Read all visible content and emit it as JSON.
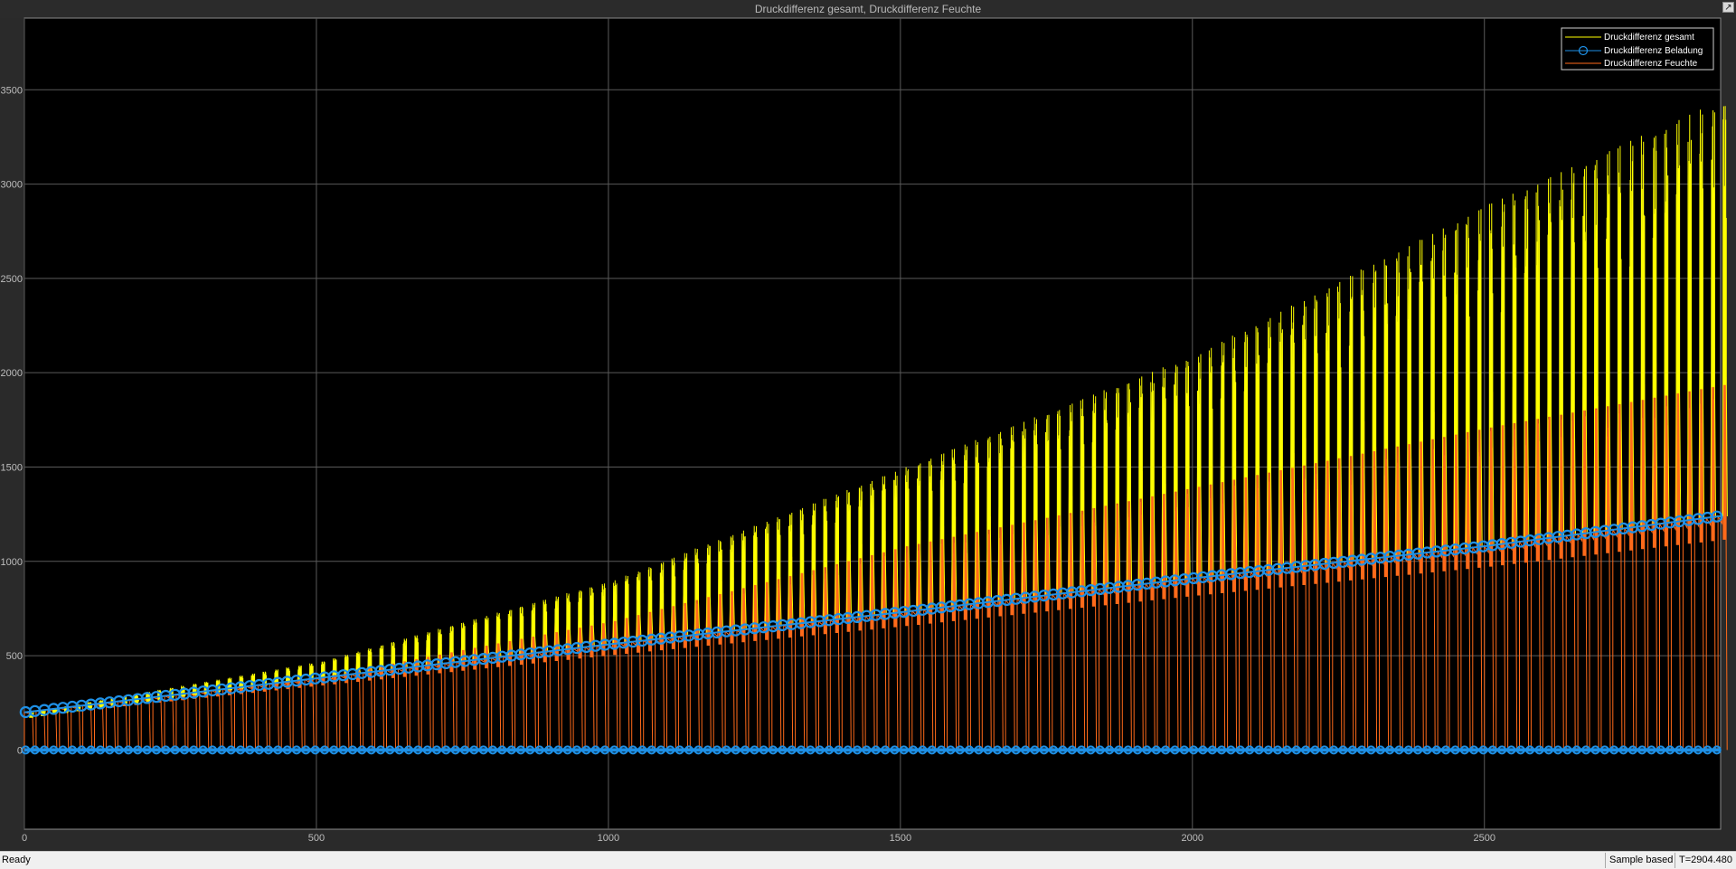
{
  "window": {
    "title": "Druckdifferenz gesamt, Druckdifferenz Feuchte",
    "undock_icon": "undock-arrow-icon"
  },
  "status": {
    "ready": "Ready",
    "mode": "Sample based",
    "time": "T=2904.480"
  },
  "colors": {
    "background": "#000000",
    "grid": "#5a5a5a",
    "gesamt": "#ffff00",
    "beladung": "#1e90e6",
    "feuchte": "#ff6a1a",
    "tick_text": "#bdbdbd"
  },
  "chart_data": {
    "type": "line",
    "title": "Druckdifferenz gesamt, Druckdifferenz Feuchte",
    "xlim": [
      0,
      2904.48
    ],
    "ylim": [
      -420,
      3880
    ],
    "xticks": [
      0,
      500,
      1000,
      1500,
      2000,
      2500
    ],
    "yticks": [
      0,
      500,
      1000,
      1500,
      2000,
      2500,
      3000,
      3500
    ],
    "grid": true,
    "legend_position": "top-right",
    "legend": [
      "Druckdifferenz gesamt",
      "Druckdifferenz Beladung",
      "Druckdifferenz Feuchte"
    ],
    "series": [
      {
        "name": "Druckdifferenz gesamt",
        "color": "#ffff00",
        "style": "thin line",
        "description_points": {
          "x": [
            0,
            500,
            1000,
            1500,
            2000,
            2500,
            2900
          ],
          "y_peak": [
            200,
            470,
            900,
            1500,
            2100,
            2900,
            3450
          ]
        }
      },
      {
        "name": "Druckdifferenz Beladung",
        "color": "#1e90e6",
        "style": "line with circle markers",
        "x": [
          0,
          500,
          1000,
          1500,
          2000,
          2500,
          2904
        ],
        "y": [
          200,
          380,
          560,
          730,
          910,
          1080,
          1240
        ],
        "baseline": 0
      },
      {
        "name": "Druckdifferenz Feuchte",
        "color": "#ff6a1a",
        "style": "thin line",
        "description_points": {
          "x": [
            0,
            500,
            1000,
            1500,
            2000,
            2500,
            2900
          ],
          "y_peak": [
            190,
            430,
            760,
            1200,
            1550,
            1900,
            2150
          ]
        }
      }
    ],
    "pulse_period": 20,
    "pulse_start": 0
  }
}
